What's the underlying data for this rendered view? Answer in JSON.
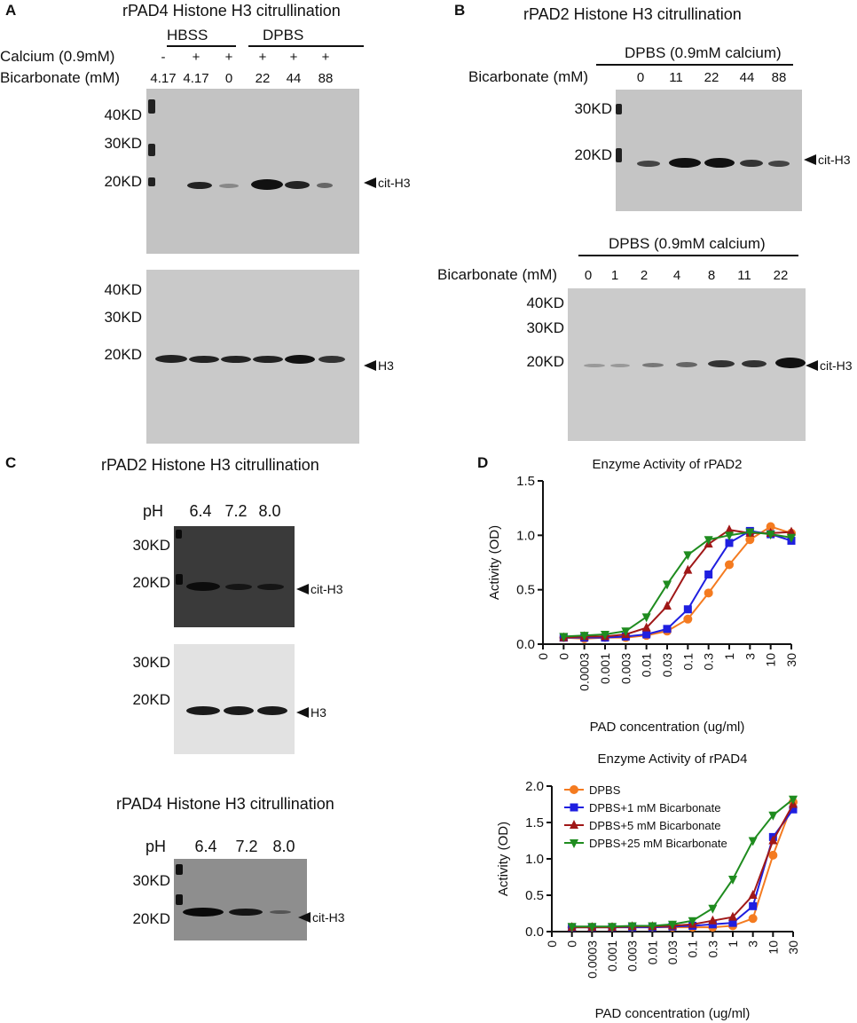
{
  "panel_labels": {
    "a": "A",
    "b": "B",
    "c": "C",
    "d": "D"
  },
  "panel_a": {
    "title": "rPAD4 Histone H3 citrullination",
    "group_hbss": "HBSS",
    "group_dpbs": "DPBS",
    "calcium_label": "Calcium (0.9mM)",
    "calcium_values": [
      "-",
      "+",
      "+",
      "+",
      "+",
      "+"
    ],
    "bicarbonate_label": "Bicarbonate (mM)",
    "bicarbonate_values": [
      "4.17",
      "4.17",
      "0",
      "22",
      "44",
      "88"
    ],
    "top_markers": [
      "40KD",
      "30KD",
      "20KD"
    ],
    "bottom_markers": [
      "40KD",
      "30KD",
      "20KD"
    ],
    "top_arrow": "cit-H3",
    "bottom_arrow": "H3"
  },
  "panel_b": {
    "title": "rPAD2 Histone H3 citrullination",
    "top_header": "DPBS (0.9mM calcium)",
    "top_bicarbonate_label": "Bicarbonate (mM)",
    "top_bicarbonate_values": [
      "0",
      "11",
      "22",
      "44",
      "88"
    ],
    "top_markers": [
      "30KD",
      "20KD"
    ],
    "top_arrow": "cit-H3",
    "bottom_header": "DPBS (0.9mM calcium)",
    "bottom_bicarbonate_label": "Bicarbonate (mM)",
    "bottom_bicarbonate_values": [
      "0",
      "1",
      "2",
      "4",
      "8",
      "11",
      "22"
    ],
    "bottom_markers": [
      "40KD",
      "30KD",
      "20KD"
    ],
    "bottom_arrow": "cit-H3"
  },
  "panel_c": {
    "title_top": "rPAD2 Histone H3 citrullination",
    "ph_label": "pH",
    "ph_values": [
      "6.4",
      "7.2",
      "8.0"
    ],
    "blot1_markers": [
      "30KD",
      "20KD"
    ],
    "blot1_arrow": "cit-H3",
    "blot2_markers": [
      "30KD",
      "20KD"
    ],
    "blot2_arrow": "H3",
    "title_bottom": "rPAD4 Histone H3 citrullination",
    "ph_label_2": "pH",
    "ph_values_2": [
      "6.4",
      "7.2",
      "8.0"
    ],
    "blot3_markers": [
      "30KD",
      "20KD"
    ],
    "blot3_arrow": "cit-H3"
  },
  "series_colors": {
    "DPBS": "#f47b20",
    "DPBS+1 mM Bicarbonate": "#1f1fe0",
    "DPBS+5 mM Bicarbonate": "#a01818",
    "DPBS+25 mM Bicarbonate": "#1f8c1f"
  },
  "chart_data": [
    {
      "type": "line",
      "title": "Enzyme Activity of rPAD2",
      "xlabel": "PAD concentration (ug/ml)",
      "ylabel": "Activity (OD)",
      "categories": [
        "0",
        "0",
        "0.0003",
        "0.001",
        "0.003",
        "0.01",
        "0.03",
        "0.1",
        "0.3",
        "1",
        "3",
        "10",
        "30"
      ],
      "yticks": [
        "0.0",
        "0.5",
        "1.0",
        "1.5"
      ],
      "ylim": [
        0,
        1.5
      ],
      "series": [
        {
          "name": "DPBS",
          "marker": "circle",
          "values": [
            null,
            0.06,
            0.05,
            0.06,
            0.06,
            0.08,
            0.12,
            0.23,
            0.47,
            0.73,
            0.96,
            1.08,
            1.02
          ]
        },
        {
          "name": "DPBS+1 mM Bicarbonate",
          "marker": "square",
          "values": [
            null,
            0.06,
            0.06,
            0.06,
            0.07,
            0.09,
            0.14,
            0.32,
            0.64,
            0.93,
            1.04,
            1.01,
            0.95
          ]
        },
        {
          "name": "DPBS+5 mM Bicarbonate",
          "marker": "triangle-up",
          "values": [
            null,
            0.06,
            0.07,
            0.07,
            0.09,
            0.15,
            0.35,
            0.68,
            0.92,
            1.05,
            1.02,
            1.02,
            1.03
          ]
        },
        {
          "name": "DPBS+25 mM Bicarbonate",
          "marker": "triangle-down",
          "values": [
            null,
            0.07,
            0.08,
            0.09,
            0.12,
            0.25,
            0.55,
            0.82,
            0.96,
            1.0,
            1.03,
            1.01,
            0.98
          ]
        }
      ]
    },
    {
      "type": "line",
      "title": "Enzyme Activity of rPAD4",
      "xlabel": "PAD concentration (ug/ml)",
      "ylabel": "Activity (OD)",
      "categories": [
        "0",
        "0",
        "0.0003",
        "0.001",
        "0.003",
        "0.01",
        "0.03",
        "0.1",
        "0.3",
        "1",
        "3",
        "10",
        "30"
      ],
      "yticks": [
        "0.0",
        "0.5",
        "1.0",
        "1.5",
        "2.0"
      ],
      "ylim": [
        0,
        2.0
      ],
      "legend": "top-left",
      "series": [
        {
          "name": "DPBS",
          "marker": "circle",
          "values": [
            null,
            0.06,
            0.06,
            0.06,
            0.06,
            0.06,
            0.06,
            0.06,
            0.06,
            0.08,
            0.18,
            1.05,
            1.78
          ]
        },
        {
          "name": "DPBS+1 mM Bicarbonate",
          "marker": "square",
          "values": [
            null,
            0.06,
            0.06,
            0.06,
            0.06,
            0.06,
            0.07,
            0.08,
            0.1,
            0.12,
            0.35,
            1.3,
            1.68
          ]
        },
        {
          "name": "DPBS+5 mM Bicarbonate",
          "marker": "triangle-up",
          "values": [
            null,
            0.06,
            0.06,
            0.06,
            0.07,
            0.07,
            0.08,
            0.1,
            0.15,
            0.2,
            0.5,
            1.25,
            1.75
          ]
        },
        {
          "name": "DPBS+25 mM Bicarbonate",
          "marker": "triangle-down",
          "values": [
            null,
            0.07,
            0.07,
            0.07,
            0.08,
            0.08,
            0.1,
            0.15,
            0.32,
            0.72,
            1.25,
            1.6,
            1.82
          ]
        }
      ]
    }
  ]
}
